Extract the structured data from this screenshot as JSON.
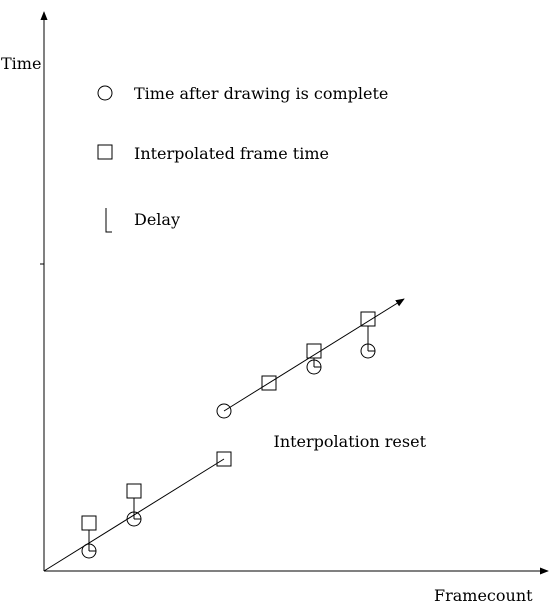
{
  "colors": {
    "stroke": "#000000",
    "background": "#ffffff"
  },
  "legend_icons": [
    "circle-icon",
    "square-icon",
    "delay-bar-icon"
  ],
  "chart_data": {
    "type": "scatter",
    "title": "",
    "xlabel": "Framecount",
    "ylabel": "Time",
    "xlim": [
      0,
      11
    ],
    "ylim": [
      0,
      12.6
    ],
    "grid": false,
    "legend": {
      "placement": "top-left",
      "entries": [
        {
          "label": "Time after drawing is complete",
          "marker": "circle"
        },
        {
          "label": "Interpolated frame time",
          "marker": "square"
        },
        {
          "label": "Delay",
          "marker": "delay-bar"
        }
      ]
    },
    "annotations": [
      {
        "text": "Interpolation reset",
        "x": 5.1,
        "y": 3.1
      }
    ],
    "interpolation_lines": [
      {
        "from": [
          0,
          0
        ],
        "to": [
          4,
          2.8
        ],
        "arrow": false
      },
      {
        "from": [
          4,
          4.0
        ],
        "to": [
          8,
          6.8
        ],
        "arrow": true
      }
    ],
    "points": [
      {
        "x": 1,
        "interpolated": 1.2,
        "complete": 0.5
      },
      {
        "x": 2,
        "interpolated": 2.0,
        "complete": 1.3
      },
      {
        "x": 4,
        "interpolated": 2.8,
        "complete": null
      },
      {
        "x": 4,
        "interpolated": null,
        "complete": 4.0
      },
      {
        "x": 5,
        "interpolated": 4.7,
        "complete": null
      },
      {
        "x": 6,
        "interpolated": 5.5,
        "complete": 5.1
      },
      {
        "x": 7.2,
        "interpolated": 6.3,
        "complete": 5.5
      }
    ]
  }
}
